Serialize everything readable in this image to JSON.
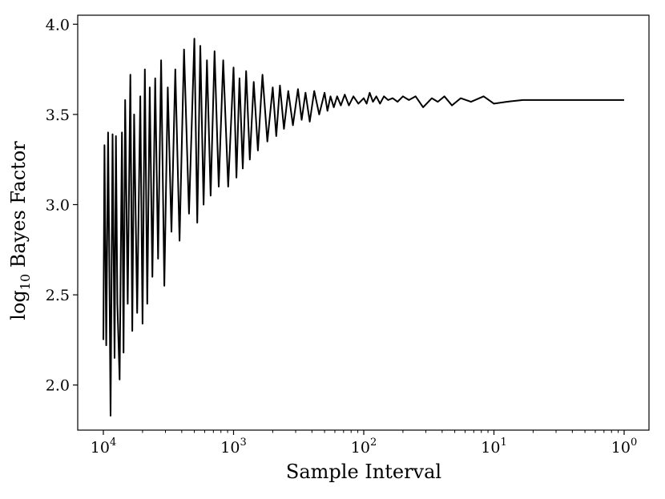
{
  "chart_data": {
    "type": "line",
    "xlabel": "Sample Interval",
    "ylabel_main": "log",
    "ylabel_sub": "10",
    "ylabel_rest": " Bayes Factor",
    "x_scale": "log",
    "x_reversed": true,
    "xlim": [
      10000,
      1
    ],
    "ylim": [
      1.75,
      4.05
    ],
    "x_ticks": [
      {
        "value": 10000,
        "base": "10",
        "exp": "4"
      },
      {
        "value": 1000,
        "base": "10",
        "exp": "3"
      },
      {
        "value": 100,
        "base": "10",
        "exp": "2"
      },
      {
        "value": 10,
        "base": "10",
        "exp": "1"
      },
      {
        "value": 1,
        "base": "10",
        "exp": "0"
      }
    ],
    "y_ticks": [
      {
        "value": 2.0,
        "label": "2.0"
      },
      {
        "value": 2.5,
        "label": "2.5"
      },
      {
        "value": 3.0,
        "label": "3.0"
      },
      {
        "value": 3.5,
        "label": "3.5"
      },
      {
        "value": 4.0,
        "label": "4.0"
      }
    ],
    "grid": false,
    "line_color": "#000000",
    "series": [
      {
        "x": [
          10000,
          9800,
          9500,
          9200,
          9000,
          8800,
          8500,
          8200,
          8000,
          7800,
          7500,
          7200,
          7000,
          6800,
          6500,
          6200,
          6000,
          5800,
          5500,
          5200,
          5000,
          4800,
          4600,
          4400,
          4200,
          4000,
          3800,
          3600,
          3400,
          3200,
          3000,
          2800,
          2600,
          2400,
          2200,
          2000,
          1900,
          1800,
          1700,
          1600,
          1500,
          1400,
          1300,
          1200,
          1100,
          1000,
          950,
          900,
          850,
          800,
          750,
          700,
          650,
          600,
          550,
          500,
          470,
          440,
          410,
          380,
          350,
          320,
          300,
          280,
          260,
          240,
          220,
          200,
          190,
          180,
          170,
          160,
          150,
          140,
          130,
          120,
          110,
          100,
          95,
          90,
          85,
          80,
          75,
          70,
          65,
          60,
          55,
          50,
          45,
          40,
          35,
          30,
          27,
          24,
          21,
          18,
          15,
          12,
          10,
          8,
          6,
          4,
          3,
          2,
          1.5,
          1
        ],
        "y": [
          2.25,
          3.33,
          2.22,
          3.4,
          2.7,
          1.83,
          3.39,
          2.15,
          3.38,
          2.45,
          2.03,
          3.4,
          2.18,
          3.58,
          2.45,
          3.72,
          2.3,
          3.5,
          2.4,
          3.6,
          2.34,
          3.75,
          2.45,
          3.65,
          2.6,
          3.7,
          2.7,
          3.8,
          2.55,
          3.65,
          2.85,
          3.75,
          2.8,
          3.86,
          2.95,
          3.92,
          2.9,
          3.88,
          3.0,
          3.8,
          3.05,
          3.85,
          3.1,
          3.8,
          3.1,
          3.76,
          3.15,
          3.7,
          3.2,
          3.74,
          3.25,
          3.68,
          3.3,
          3.72,
          3.35,
          3.65,
          3.38,
          3.66,
          3.42,
          3.63,
          3.44,
          3.64,
          3.47,
          3.62,
          3.46,
          3.63,
          3.5,
          3.62,
          3.52,
          3.6,
          3.54,
          3.6,
          3.55,
          3.61,
          3.55,
          3.6,
          3.56,
          3.59,
          3.56,
          3.62,
          3.57,
          3.6,
          3.56,
          3.6,
          3.58,
          3.59,
          3.57,
          3.6,
          3.58,
          3.6,
          3.54,
          3.59,
          3.57,
          3.6,
          3.55,
          3.59,
          3.57,
          3.6,
          3.56,
          3.57,
          3.58,
          3.58,
          3.58,
          3.58,
          3.58,
          3.58
        ]
      }
    ]
  }
}
